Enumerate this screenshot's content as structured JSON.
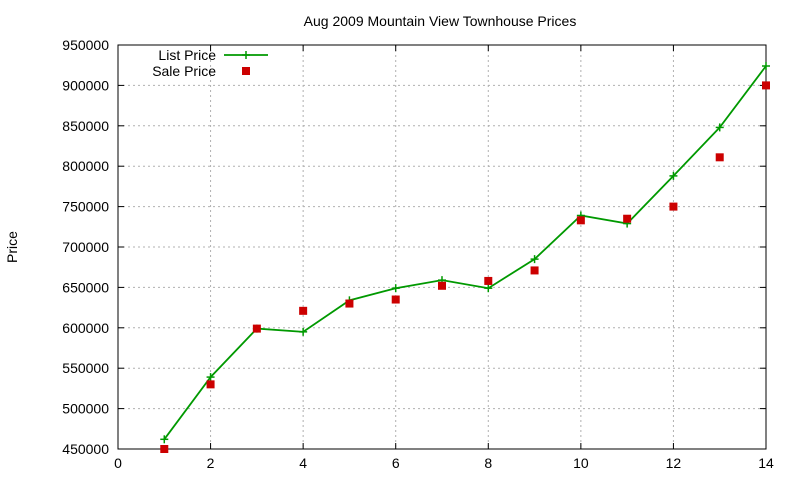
{
  "chart_data": {
    "type": "line",
    "title": "Aug 2009 Mountain View Townhouse Prices",
    "xlabel": "",
    "ylabel": "Price",
    "xlim": [
      0,
      14
    ],
    "ylim": [
      450000,
      950000
    ],
    "xticks": [
      0,
      2,
      4,
      6,
      8,
      10,
      12,
      14
    ],
    "yticks": [
      450000,
      500000,
      550000,
      600000,
      650000,
      700000,
      750000,
      800000,
      850000,
      900000,
      950000
    ],
    "xtick_labels": [
      "0",
      "2",
      "4",
      "6",
      "8",
      "10",
      "12",
      "14"
    ],
    "ytick_labels": [
      "450000",
      "500000",
      "550000",
      "600000",
      "650000",
      "700000",
      "750000",
      "800000",
      "850000",
      "900000",
      "950000"
    ],
    "grid": true,
    "legend_position": "top-left",
    "series": [
      {
        "name": "List Price",
        "style": "line-with-plus-markers",
        "color": "#009900",
        "x": [
          1,
          2,
          3,
          4,
          5,
          6,
          7,
          8,
          9,
          10,
          11,
          12,
          13,
          14
        ],
        "y": [
          462000,
          539000,
          599000,
          595000,
          634000,
          649000,
          659000,
          649000,
          685000,
          739000,
          729000,
          788000,
          848000,
          924000
        ]
      },
      {
        "name": "Sale Price",
        "style": "square-markers",
        "color": "#cc0000",
        "x": [
          1,
          2,
          3,
          4,
          5,
          6,
          7,
          8,
          9,
          10,
          11,
          12,
          13,
          14
        ],
        "y": [
          450000,
          530000,
          599000,
          621000,
          630000,
          635000,
          652000,
          658000,
          671000,
          733000,
          735000,
          750000,
          811000,
          900000
        ]
      }
    ]
  }
}
